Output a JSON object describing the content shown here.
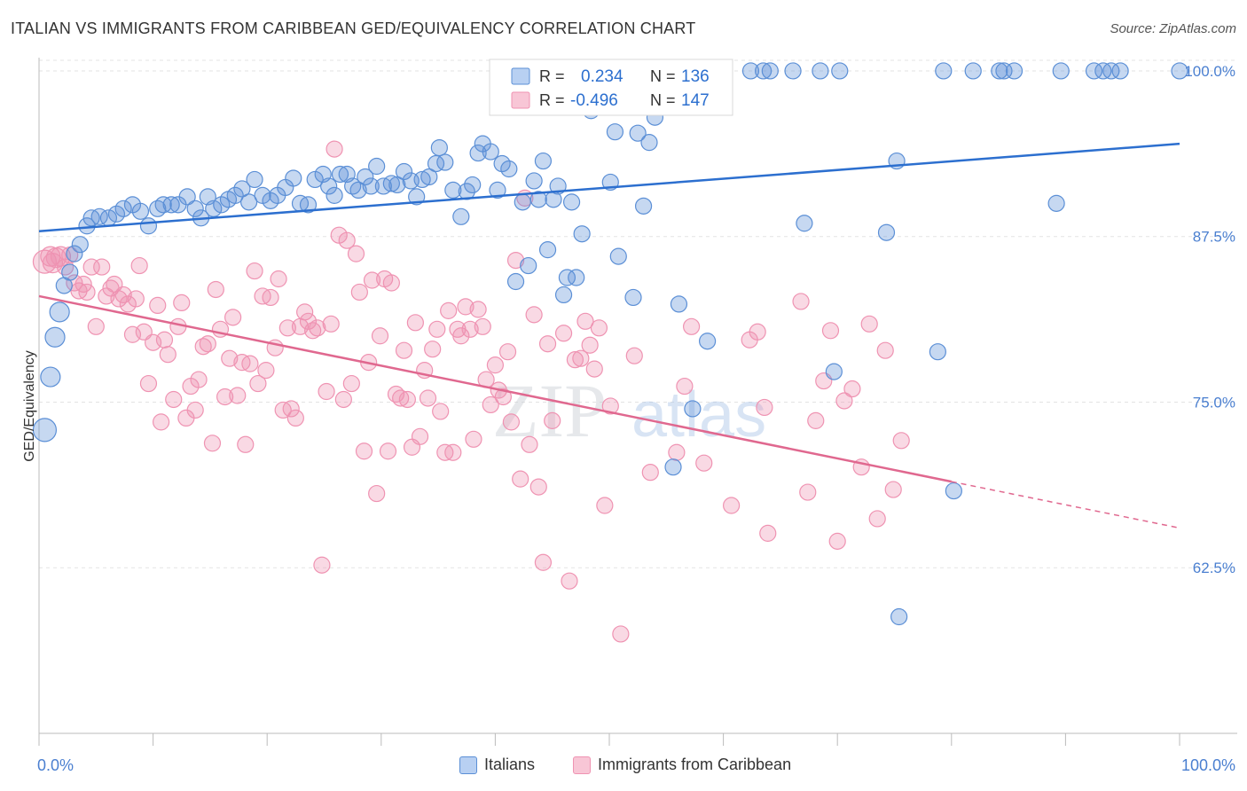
{
  "title": "ITALIAN VS IMMIGRANTS FROM CARIBBEAN GED/EQUIVALENCY CORRELATION CHART",
  "source": "Source: ZipAtlas.com",
  "watermark": {
    "zip": "ZIP",
    "atlas": "atlas"
  },
  "colors": {
    "blue": "#5b8fd6",
    "blue_line": "#2c6fcf",
    "pink": "#ef93b2",
    "pink_line": "#e0688f",
    "axis_label": "#4a7fd0"
  },
  "chart_data": {
    "type": "scatter",
    "ylabel": "GED/Equivalency",
    "xlim": [
      0,
      100
    ],
    "ylim": [
      50,
      101
    ],
    "x_tick_labels": [
      "0.0%",
      "100.0%"
    ],
    "y_ticks": [
      62.5,
      75.0,
      87.5,
      100.0
    ],
    "y_tick_labels": [
      "62.5%",
      "75.0%",
      "87.5%",
      "100.0%"
    ],
    "grid": true,
    "legend": {
      "position": "top-center",
      "entries": [
        {
          "r_label": "R =",
          "r_value": "0.234",
          "n_label": "N =",
          "n_value": "136"
        },
        {
          "r_label": "R =",
          "r_value": "-0.496",
          "n_label": "N =",
          "n_value": "147"
        }
      ]
    },
    "series": [
      {
        "name": "Italians",
        "trend": {
          "x": [
            0,
            100
          ],
          "y": [
            87.9,
            94.5
          ],
          "solid_to": 100
        },
        "points": [
          [
            0.5,
            72.9
          ],
          [
            1.0,
            76.9
          ],
          [
            1.4,
            79.9
          ],
          [
            1.8,
            81.8
          ],
          [
            2.2,
            83.8
          ],
          [
            2.7,
            84.8
          ],
          [
            3.1,
            86.2
          ],
          [
            3.6,
            86.9
          ],
          [
            4.2,
            88.3
          ],
          [
            4.6,
            88.9
          ],
          [
            5.3,
            89.0
          ],
          [
            6.1,
            88.9
          ],
          [
            6.8,
            89.2
          ],
          [
            7.4,
            89.6
          ],
          [
            8.2,
            89.9
          ],
          [
            8.9,
            89.4
          ],
          [
            9.6,
            88.3
          ],
          [
            10.4,
            89.6
          ],
          [
            10.9,
            89.9
          ],
          [
            11.6,
            89.9
          ],
          [
            12.2,
            89.9
          ],
          [
            13.0,
            90.5
          ],
          [
            13.7,
            89.6
          ],
          [
            14.2,
            88.9
          ],
          [
            14.8,
            90.5
          ],
          [
            15.3,
            89.6
          ],
          [
            16.0,
            89.9
          ],
          [
            16.6,
            90.3
          ],
          [
            17.2,
            90.6
          ],
          [
            17.8,
            91.1
          ],
          [
            18.4,
            90.1
          ],
          [
            18.9,
            91.8
          ],
          [
            19.6,
            90.6
          ],
          [
            20.3,
            90.2
          ],
          [
            20.9,
            90.6
          ],
          [
            21.6,
            91.2
          ],
          [
            22.3,
            91.9
          ],
          [
            22.9,
            90.0
          ],
          [
            23.6,
            89.9
          ],
          [
            24.2,
            91.8
          ],
          [
            24.9,
            92.2
          ],
          [
            25.4,
            91.3
          ],
          [
            25.9,
            90.6
          ],
          [
            26.4,
            92.2
          ],
          [
            27.0,
            92.2
          ],
          [
            27.5,
            91.3
          ],
          [
            28.0,
            91.0
          ],
          [
            28.6,
            92.0
          ],
          [
            29.1,
            91.3
          ],
          [
            29.6,
            92.8
          ],
          [
            30.2,
            91.3
          ],
          [
            30.9,
            91.5
          ],
          [
            31.4,
            91.4
          ],
          [
            32.0,
            92.4
          ],
          [
            32.6,
            91.7
          ],
          [
            33.1,
            90.5
          ],
          [
            33.6,
            91.8
          ],
          [
            34.2,
            92.0
          ],
          [
            34.8,
            93.0
          ],
          [
            35.1,
            94.2
          ],
          [
            35.6,
            93.1
          ],
          [
            36.3,
            91.0
          ],
          [
            37.0,
            89.0
          ],
          [
            37.5,
            90.9
          ],
          [
            38.0,
            91.4
          ],
          [
            38.5,
            93.8
          ],
          [
            38.9,
            94.5
          ],
          [
            39.6,
            93.9
          ],
          [
            40.2,
            91.0
          ],
          [
            40.6,
            93.0
          ],
          [
            41.2,
            92.6
          ],
          [
            41.8,
            84.1
          ],
          [
            42.4,
            90.1
          ],
          [
            42.9,
            85.3
          ],
          [
            43.4,
            91.7
          ],
          [
            43.8,
            90.3
          ],
          [
            44.2,
            93.2
          ],
          [
            44.6,
            86.5
          ],
          [
            45.1,
            90.3
          ],
          [
            45.5,
            91.3
          ],
          [
            46.0,
            83.1
          ],
          [
            46.3,
            84.4
          ],
          [
            46.7,
            90.1
          ],
          [
            47.1,
            84.4
          ],
          [
            47.6,
            87.7
          ],
          [
            47.9,
            100.0
          ],
          [
            48.4,
            97.0
          ],
          [
            49.2,
            100.0
          ],
          [
            50.1,
            91.6
          ],
          [
            50.5,
            95.4
          ],
          [
            50.8,
            86.0
          ],
          [
            51.6,
            100.0
          ],
          [
            52.1,
            82.9
          ],
          [
            52.5,
            95.3
          ],
          [
            53.0,
            89.8
          ],
          [
            53.5,
            94.6
          ],
          [
            54.0,
            96.5
          ],
          [
            55.1,
            100.0
          ],
          [
            55.6,
            70.1
          ],
          [
            56.1,
            82.4
          ],
          [
            56.7,
            100.0
          ],
          [
            57.3,
            74.5
          ],
          [
            58.2,
            100.0
          ],
          [
            58.6,
            79.6
          ],
          [
            60.0,
            100.0
          ],
          [
            62.4,
            100.0
          ],
          [
            63.5,
            100.0
          ],
          [
            64.1,
            100.0
          ],
          [
            66.1,
            100.0
          ],
          [
            67.1,
            88.5
          ],
          [
            68.5,
            100.0
          ],
          [
            69.7,
            77.3
          ],
          [
            70.2,
            100.0
          ],
          [
            74.3,
            87.8
          ],
          [
            75.2,
            93.2
          ],
          [
            75.4,
            58.8
          ],
          [
            78.8,
            78.8
          ],
          [
            79.3,
            100.0
          ],
          [
            80.2,
            68.3
          ],
          [
            81.9,
            100.0
          ],
          [
            84.2,
            100.0
          ],
          [
            84.6,
            100.0
          ],
          [
            85.5,
            100.0
          ],
          [
            89.2,
            90.0
          ],
          [
            89.6,
            100.0
          ],
          [
            92.5,
            100.0
          ],
          [
            93.3,
            100.0
          ],
          [
            94.0,
            100.0
          ],
          [
            94.8,
            100.0
          ],
          [
            100.0,
            100.0
          ]
        ]
      },
      {
        "name": "Immigrants from Caribbean",
        "trend": {
          "x": [
            0,
            100
          ],
          "y": [
            83.0,
            65.5
          ],
          "solid_to": 80
        },
        "points": [
          [
            0.5,
            85.6
          ],
          [
            1.0,
            86.0
          ],
          [
            1.2,
            85.5
          ],
          [
            1.5,
            85.9
          ],
          [
            1.9,
            86.0
          ],
          [
            2.3,
            85.2
          ],
          [
            2.7,
            86.1
          ],
          [
            3.1,
            84.0
          ],
          [
            3.5,
            83.4
          ],
          [
            3.9,
            83.9
          ],
          [
            4.2,
            83.3
          ],
          [
            4.6,
            85.2
          ],
          [
            5.0,
            80.7
          ],
          [
            5.5,
            85.2
          ],
          [
            5.9,
            83.0
          ],
          [
            6.3,
            83.6
          ],
          [
            6.6,
            83.9
          ],
          [
            7.0,
            82.8
          ],
          [
            7.4,
            83.1
          ],
          [
            7.8,
            82.4
          ],
          [
            8.2,
            80.1
          ],
          [
            8.5,
            82.8
          ],
          [
            8.8,
            85.3
          ],
          [
            9.2,
            80.3
          ],
          [
            9.6,
            76.4
          ],
          [
            10.0,
            79.5
          ],
          [
            10.4,
            82.3
          ],
          [
            10.7,
            73.5
          ],
          [
            11.0,
            79.7
          ],
          [
            11.3,
            78.6
          ],
          [
            11.8,
            75.2
          ],
          [
            12.2,
            80.7
          ],
          [
            12.5,
            82.5
          ],
          [
            12.9,
            73.8
          ],
          [
            13.3,
            76.2
          ],
          [
            13.7,
            74.4
          ],
          [
            14.0,
            76.7
          ],
          [
            14.4,
            79.2
          ],
          [
            14.8,
            79.4
          ],
          [
            15.2,
            71.9
          ],
          [
            15.5,
            83.5
          ],
          [
            15.9,
            80.5
          ],
          [
            16.3,
            75.4
          ],
          [
            16.7,
            78.3
          ],
          [
            17.0,
            81.4
          ],
          [
            17.4,
            75.5
          ],
          [
            17.8,
            78.0
          ],
          [
            18.1,
            71.8
          ],
          [
            18.5,
            77.9
          ],
          [
            18.9,
            84.9
          ],
          [
            19.2,
            76.4
          ],
          [
            19.6,
            83.0
          ],
          [
            19.9,
            77.4
          ],
          [
            20.3,
            82.9
          ],
          [
            20.7,
            79.1
          ],
          [
            21.0,
            84.3
          ],
          [
            21.4,
            74.4
          ],
          [
            21.8,
            80.6
          ],
          [
            22.1,
            74.5
          ],
          [
            22.5,
            73.8
          ],
          [
            22.9,
            80.7
          ],
          [
            23.3,
            81.8
          ],
          [
            23.6,
            81.1
          ],
          [
            24.0,
            80.4
          ],
          [
            24.4,
            80.6
          ],
          [
            24.8,
            62.7
          ],
          [
            25.2,
            75.8
          ],
          [
            25.6,
            80.9
          ],
          [
            25.9,
            94.1
          ],
          [
            26.3,
            87.6
          ],
          [
            26.7,
            75.2
          ],
          [
            27.0,
            87.2
          ],
          [
            27.4,
            76.4
          ],
          [
            27.8,
            86.2
          ],
          [
            28.1,
            83.3
          ],
          [
            28.5,
            71.3
          ],
          [
            28.9,
            78.0
          ],
          [
            29.2,
            84.2
          ],
          [
            29.6,
            68.1
          ],
          [
            29.9,
            80.0
          ],
          [
            30.3,
            84.3
          ],
          [
            30.6,
            71.3
          ],
          [
            30.9,
            84.0
          ],
          [
            31.3,
            75.6
          ],
          [
            31.7,
            75.3
          ],
          [
            32.0,
            78.9
          ],
          [
            32.3,
            75.2
          ],
          [
            32.7,
            71.6
          ],
          [
            33.0,
            81.0
          ],
          [
            33.4,
            72.4
          ],
          [
            33.8,
            77.4
          ],
          [
            34.1,
            75.3
          ],
          [
            34.5,
            79.0
          ],
          [
            34.9,
            80.5
          ],
          [
            35.2,
            74.3
          ],
          [
            35.6,
            71.2
          ],
          [
            35.9,
            81.9
          ],
          [
            36.3,
            71.2
          ],
          [
            36.7,
            80.5
          ],
          [
            37.0,
            80.0
          ],
          [
            37.4,
            82.2
          ],
          [
            37.8,
            80.5
          ],
          [
            38.1,
            72.2
          ],
          [
            38.5,
            82.0
          ],
          [
            38.9,
            80.7
          ],
          [
            39.2,
            76.7
          ],
          [
            39.6,
            74.8
          ],
          [
            40.0,
            77.8
          ],
          [
            40.3,
            75.9
          ],
          [
            40.7,
            75.4
          ],
          [
            41.1,
            78.8
          ],
          [
            41.4,
            73.5
          ],
          [
            41.8,
            85.7
          ],
          [
            42.2,
            69.2
          ],
          [
            42.6,
            90.4
          ],
          [
            43.0,
            71.8
          ],
          [
            43.4,
            81.6
          ],
          [
            43.8,
            68.6
          ],
          [
            44.2,
            62.9
          ],
          [
            44.6,
            79.4
          ],
          [
            45.0,
            73.6
          ],
          [
            46.0,
            80.2
          ],
          [
            46.5,
            61.5
          ],
          [
            47.0,
            78.2
          ],
          [
            47.5,
            78.3
          ],
          [
            47.9,
            81.1
          ],
          [
            48.3,
            79.3
          ],
          [
            48.7,
            77.5
          ],
          [
            49.1,
            80.6
          ],
          [
            49.6,
            67.2
          ],
          [
            50.1,
            74.7
          ],
          [
            51.0,
            57.5
          ],
          [
            52.2,
            78.5
          ],
          [
            53.6,
            69.7
          ],
          [
            55.9,
            71.2
          ],
          [
            56.6,
            76.2
          ],
          [
            57.2,
            80.7
          ],
          [
            58.3,
            70.4
          ],
          [
            60.7,
            67.2
          ],
          [
            62.3,
            79.7
          ],
          [
            63.0,
            80.3
          ],
          [
            63.6,
            74.6
          ],
          [
            63.9,
            65.1
          ],
          [
            66.8,
            82.6
          ],
          [
            67.4,
            68.2
          ],
          [
            68.1,
            73.6
          ],
          [
            68.8,
            76.6
          ],
          [
            69.4,
            80.4
          ],
          [
            70.0,
            64.5
          ],
          [
            70.6,
            75.1
          ],
          [
            71.3,
            76.0
          ],
          [
            72.1,
            70.1
          ],
          [
            72.8,
            80.9
          ],
          [
            73.5,
            66.2
          ],
          [
            74.2,
            78.9
          ],
          [
            74.9,
            68.4
          ],
          [
            75.6,
            72.1
          ]
        ]
      }
    ]
  }
}
